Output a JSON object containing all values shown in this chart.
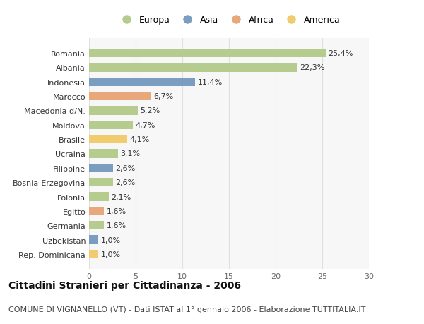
{
  "countries": [
    "Romania",
    "Albania",
    "Indonesia",
    "Marocco",
    "Macedonia d/N.",
    "Moldova",
    "Brasile",
    "Ucraina",
    "Filippine",
    "Bosnia-Erzegovina",
    "Polonia",
    "Egitto",
    "Germania",
    "Uzbekistan",
    "Rep. Dominicana"
  ],
  "values": [
    25.4,
    22.3,
    11.4,
    6.7,
    5.2,
    4.7,
    4.1,
    3.1,
    2.6,
    2.6,
    2.1,
    1.6,
    1.6,
    1.0,
    1.0
  ],
  "labels": [
    "25,4%",
    "22,3%",
    "11,4%",
    "6,7%",
    "5,2%",
    "4,7%",
    "4,1%",
    "3,1%",
    "2,6%",
    "2,6%",
    "2,1%",
    "1,6%",
    "1,6%",
    "1,0%",
    "1,0%"
  ],
  "categories": [
    "Europa",
    "Europa",
    "Asia",
    "Africa",
    "Europa",
    "Europa",
    "America",
    "Europa",
    "Asia",
    "Europa",
    "Europa",
    "Africa",
    "Europa",
    "Asia",
    "America"
  ],
  "colors": {
    "Europa": "#b5cc8e",
    "Asia": "#7b9dc0",
    "Africa": "#e8a87c",
    "America": "#f0cc6e"
  },
  "xlim": [
    0,
    30
  ],
  "xticks": [
    0,
    5,
    10,
    15,
    20,
    25,
    30
  ],
  "bg_color": "#ffffff",
  "plot_bg_color": "#f7f7f7",
  "grid_color": "#e0e0e0",
  "title": "Cittadini Stranieri per Cittadinanza - 2006",
  "subtitle": "COMUNE DI VIGNANELLO (VT) - Dati ISTAT al 1° gennaio 2006 - Elaborazione TUTTITALIA.IT",
  "title_fontsize": 10,
  "subtitle_fontsize": 8,
  "bar_height": 0.6,
  "label_fontsize": 8,
  "tick_fontsize": 8,
  "legend_order": [
    "Europa",
    "Asia",
    "Africa",
    "America"
  ]
}
